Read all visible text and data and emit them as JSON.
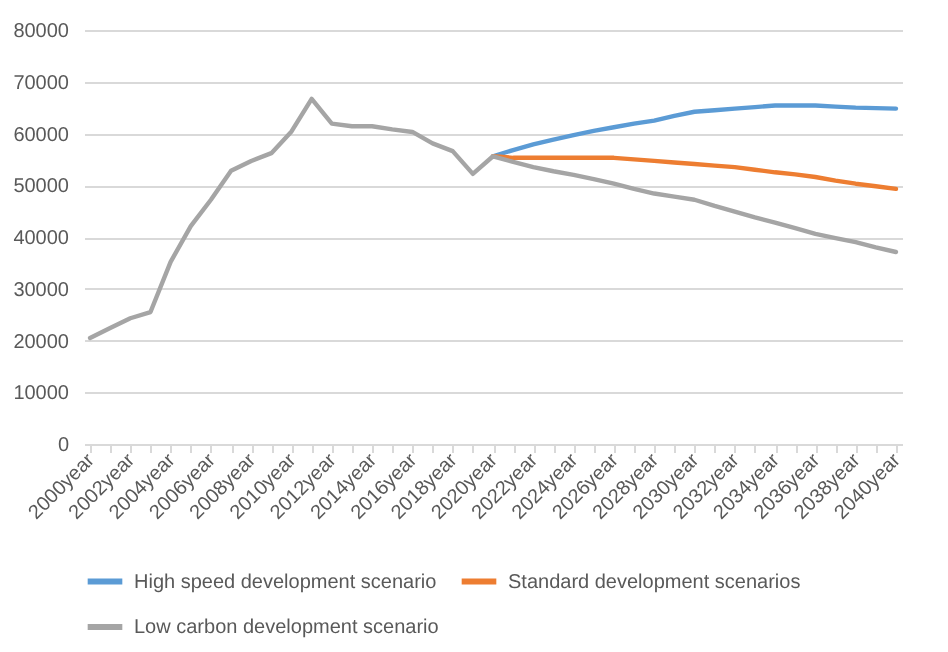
{
  "chart_data": {
    "type": "line",
    "categories": [
      "2000year",
      null,
      "2002year",
      null,
      "2004year",
      null,
      "2006year",
      null,
      "2008year",
      null,
      "2010year",
      null,
      "2012year",
      null,
      "2014year",
      null,
      "2016year",
      null,
      "2018year",
      null,
      "2020year",
      null,
      "2022year",
      null,
      "2024year",
      null,
      "2026year",
      null,
      "2028year",
      null,
      "2030year",
      null,
      "2032year",
      null,
      "2034year",
      null,
      "2036year",
      null,
      "2038year",
      null,
      "2040year"
    ],
    "series": [
      {
        "name": "High speed development scenario",
        "color": "#5b9bd5",
        "values": [
          null,
          null,
          null,
          null,
          null,
          null,
          null,
          null,
          null,
          null,
          null,
          null,
          null,
          null,
          null,
          null,
          null,
          null,
          null,
          null,
          55600,
          56800,
          57900,
          58800,
          59700,
          60500,
          61200,
          61900,
          62500,
          63400,
          64200,
          64500,
          64800,
          65100,
          65400,
          65400,
          65400,
          65200,
          65000,
          64900,
          64800
        ]
      },
      {
        "name": "Standard development scenarios",
        "color": "#ed7d31",
        "values": [
          null,
          null,
          null,
          null,
          null,
          null,
          null,
          null,
          null,
          null,
          null,
          null,
          null,
          null,
          null,
          null,
          null,
          null,
          null,
          null,
          55600,
          55300,
          55300,
          55300,
          55300,
          55300,
          55300,
          55000,
          54700,
          54400,
          54100,
          53800,
          53500,
          53000,
          52500,
          52100,
          51600,
          50900,
          50300,
          49800,
          49300
        ]
      },
      {
        "name": "Low carbon development scenario",
        "color": "#a5a5a5",
        "values": [
          20500,
          22400,
          24300,
          25500,
          35200,
          42100,
          47200,
          52800,
          54700,
          56200,
          60400,
          66700,
          61900,
          61400,
          61400,
          60800,
          60300,
          58100,
          56600,
          52200,
          55600,
          54500,
          53500,
          52700,
          52000,
          51200,
          50300,
          49300,
          48400,
          47800,
          47200,
          46000,
          44900,
          43800,
          42800,
          41700,
          40600,
          39800,
          39000,
          38000,
          37100
        ]
      }
    ],
    "ylim": [
      0,
      80000
    ],
    "yticks": [
      0,
      10000,
      20000,
      30000,
      40000,
      50000,
      60000,
      70000,
      80000
    ],
    "grid": "y",
    "legend": "bottom",
    "marker": "none",
    "line_style": "solid"
  }
}
